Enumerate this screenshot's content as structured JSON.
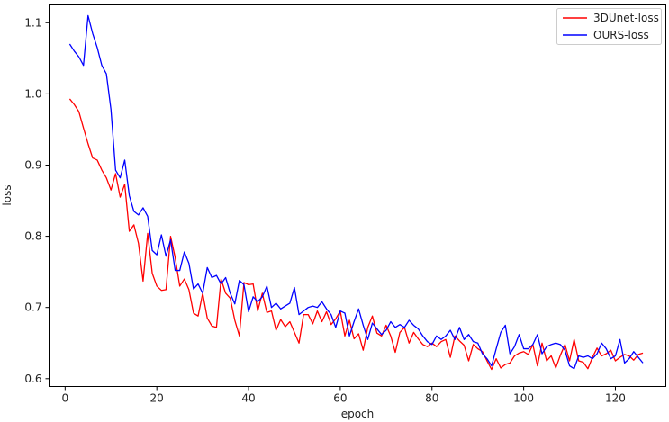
{
  "chart_data": {
    "type": "line",
    "title": "",
    "xlabel": "epoch",
    "ylabel": "loss",
    "xlim": [
      -3.5,
      131
    ],
    "ylim": [
      0.589,
      1.125
    ],
    "xticks": [
      0,
      20,
      40,
      60,
      80,
      100,
      120
    ],
    "yticks": [
      0.6,
      0.7,
      0.8,
      0.9,
      1.0,
      1.1
    ],
    "ytick_labels": [
      "0.6",
      "0.7",
      "0.8",
      "0.9",
      "1.0",
      "1.1"
    ],
    "grid": false,
    "legend_position": "top-right",
    "series": [
      {
        "name": "3DUnet-loss",
        "color": "#ff0000",
        "x": [
          1,
          2,
          3,
          4,
          5,
          6,
          7,
          8,
          9,
          10,
          11,
          12,
          13,
          14,
          15,
          16,
          17,
          18,
          19,
          20,
          21,
          22,
          23,
          24,
          25,
          26,
          27,
          28,
          29,
          30,
          31,
          32,
          33,
          34,
          35,
          36,
          37,
          38,
          39,
          40,
          41,
          42,
          43,
          44,
          45,
          46,
          47,
          48,
          49,
          50,
          51,
          52,
          53,
          54,
          55,
          56,
          57,
          58,
          59,
          60,
          61,
          62,
          63,
          64,
          65,
          66,
          67,
          68,
          69,
          70,
          71,
          72,
          73,
          74,
          75,
          76,
          77,
          78,
          79,
          80,
          81,
          82,
          83,
          84,
          85,
          86,
          87,
          88,
          89,
          90,
          91,
          92,
          93,
          94,
          95,
          96,
          97,
          98,
          99,
          100,
          101,
          102,
          103,
          104,
          105,
          106,
          107,
          108,
          109,
          110,
          111,
          112,
          113,
          114,
          115,
          116,
          117,
          118,
          119,
          120,
          121,
          122,
          123,
          124,
          125,
          126
        ],
        "y": [
          0.993,
          0.985,
          0.975,
          0.952,
          0.93,
          0.91,
          0.907,
          0.893,
          0.882,
          0.865,
          0.888,
          0.855,
          0.873,
          0.807,
          0.816,
          0.79,
          0.737,
          0.804,
          0.748,
          0.73,
          0.724,
          0.725,
          0.8,
          0.77,
          0.73,
          0.74,
          0.725,
          0.692,
          0.688,
          0.72,
          0.685,
          0.674,
          0.672,
          0.74,
          0.72,
          0.713,
          0.682,
          0.66,
          0.735,
          0.732,
          0.733,
          0.695,
          0.72,
          0.693,
          0.695,
          0.668,
          0.683,
          0.673,
          0.68,
          0.665,
          0.65,
          0.69,
          0.69,
          0.677,
          0.695,
          0.68,
          0.694,
          0.676,
          0.684,
          0.695,
          0.66,
          0.682,
          0.656,
          0.663,
          0.64,
          0.672,
          0.688,
          0.664,
          0.66,
          0.675,
          0.66,
          0.637,
          0.665,
          0.672,
          0.65,
          0.665,
          0.656,
          0.648,
          0.645,
          0.65,
          0.645,
          0.652,
          0.655,
          0.63,
          0.66,
          0.653,
          0.647,
          0.625,
          0.648,
          0.642,
          0.638,
          0.625,
          0.613,
          0.628,
          0.615,
          0.62,
          0.622,
          0.632,
          0.636,
          0.638,
          0.634,
          0.648,
          0.618,
          0.65,
          0.625,
          0.632,
          0.615,
          0.633,
          0.648,
          0.625,
          0.655,
          0.625,
          0.623,
          0.614,
          0.63,
          0.643,
          0.632,
          0.635,
          0.64,
          0.625,
          0.63,
          0.634,
          0.632,
          0.626,
          0.634,
          0.636
        ]
      },
      {
        "name": "OURS-loss",
        "color": "#0000ff",
        "x": [
          1,
          2,
          3,
          4,
          5,
          6,
          7,
          8,
          9,
          10,
          11,
          12,
          13,
          14,
          15,
          16,
          17,
          18,
          19,
          20,
          21,
          22,
          23,
          24,
          25,
          26,
          27,
          28,
          29,
          30,
          31,
          32,
          33,
          34,
          35,
          36,
          37,
          38,
          39,
          40,
          41,
          42,
          43,
          44,
          45,
          46,
          47,
          48,
          49,
          50,
          51,
          52,
          53,
          54,
          55,
          56,
          57,
          58,
          59,
          60,
          61,
          62,
          63,
          64,
          65,
          66,
          67,
          68,
          69,
          70,
          71,
          72,
          73,
          74,
          75,
          76,
          77,
          78,
          79,
          80,
          81,
          82,
          83,
          84,
          85,
          86,
          87,
          88,
          89,
          90,
          91,
          92,
          93,
          94,
          95,
          96,
          97,
          98,
          99,
          100,
          101,
          102,
          103,
          104,
          105,
          106,
          107,
          108,
          109,
          110,
          111,
          112,
          113,
          114,
          115,
          116,
          117,
          118,
          119,
          120,
          121,
          122,
          123,
          124,
          125,
          126
        ],
        "y": [
          1.07,
          1.06,
          1.052,
          1.04,
          1.11,
          1.085,
          1.065,
          1.04,
          1.028,
          0.978,
          0.893,
          0.882,
          0.907,
          0.857,
          0.835,
          0.83,
          0.84,
          0.828,
          0.78,
          0.774,
          0.802,
          0.772,
          0.795,
          0.752,
          0.752,
          0.778,
          0.762,
          0.726,
          0.733,
          0.72,
          0.756,
          0.742,
          0.745,
          0.733,
          0.742,
          0.72,
          0.705,
          0.738,
          0.732,
          0.694,
          0.715,
          0.708,
          0.715,
          0.73,
          0.7,
          0.706,
          0.698,
          0.702,
          0.706,
          0.728,
          0.69,
          0.695,
          0.7,
          0.702,
          0.7,
          0.708,
          0.698,
          0.69,
          0.672,
          0.695,
          0.692,
          0.66,
          0.68,
          0.698,
          0.675,
          0.655,
          0.678,
          0.67,
          0.662,
          0.668,
          0.68,
          0.672,
          0.676,
          0.672,
          0.682,
          0.675,
          0.67,
          0.66,
          0.652,
          0.648,
          0.66,
          0.655,
          0.66,
          0.668,
          0.655,
          0.672,
          0.655,
          0.662,
          0.652,
          0.65,
          0.635,
          0.628,
          0.618,
          0.642,
          0.665,
          0.675,
          0.635,
          0.645,
          0.662,
          0.642,
          0.642,
          0.648,
          0.662,
          0.635,
          0.645,
          0.648,
          0.65,
          0.648,
          0.64,
          0.618,
          0.614,
          0.632,
          0.63,
          0.632,
          0.628,
          0.635,
          0.65,
          0.642,
          0.628,
          0.632,
          0.655,
          0.622,
          0.628,
          0.638,
          0.63,
          0.622
        ]
      }
    ]
  }
}
